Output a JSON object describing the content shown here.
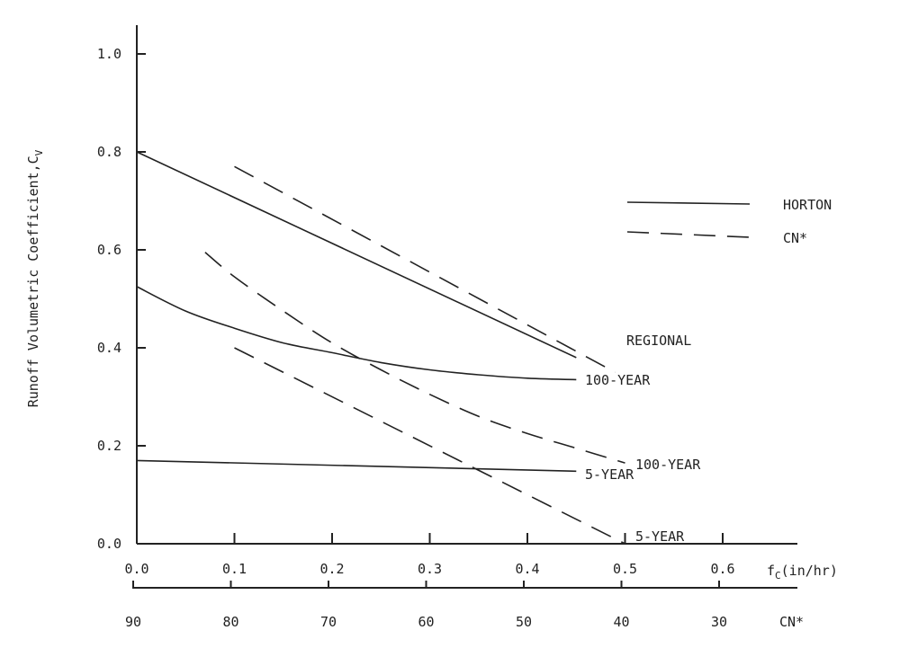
{
  "chart_data": {
    "type": "line",
    "ylabel": "Runoff Volumetric Coefficient,C",
    "ylabel_subscript": "V",
    "xlabel": "f",
    "xlabel_subscript": "C",
    "xlabel_unit": "(in/hr)",
    "x2label": "CN*",
    "xlim": [
      0.0,
      0.67
    ],
    "ylim": [
      0.0,
      1.05
    ],
    "x_ticks": [
      "0.0",
      "0.1",
      "0.2",
      "0.3",
      "0.4",
      "0.5",
      "0.6"
    ],
    "y_ticks": [
      "0.0",
      "0.2",
      "0.4",
      "0.6",
      "0.8",
      "1.0"
    ],
    "x2_ticks": [
      "90",
      "80",
      "70",
      "60",
      "50",
      "40",
      "30"
    ],
    "legend": [
      {
        "label": "HORTON",
        "style": "solid"
      },
      {
        "label": "CN*",
        "style": "dashed"
      }
    ],
    "annotations": {
      "regional": "REGIONAL",
      "horton_100": "100-YEAR",
      "horton_5": "5-YEAR",
      "cn_100": "100-YEAR",
      "cn_5": "5-YEAR"
    },
    "series": [
      {
        "style": "solid",
        "x": [
          0.0,
          0.45
        ],
        "y": [
          0.8,
          0.38
        ]
      },
      {
        "style": "dashed",
        "x": [
          0.1,
          0.49
        ],
        "y": [
          0.77,
          0.35
        ]
      },
      {
        "style": "solid",
        "x": [
          0.0,
          0.05,
          0.1,
          0.15,
          0.2,
          0.25,
          0.3,
          0.35,
          0.4,
          0.45
        ],
        "y": [
          0.525,
          0.475,
          0.44,
          0.41,
          0.39,
          0.37,
          0.355,
          0.345,
          0.338,
          0.335
        ]
      },
      {
        "style": "dashed",
        "x": [
          0.07,
          0.1,
          0.15,
          0.2,
          0.25,
          0.3,
          0.35,
          0.4,
          0.45,
          0.5
        ],
        "y": [
          0.595,
          0.545,
          0.475,
          0.41,
          0.355,
          0.305,
          0.26,
          0.225,
          0.195,
          0.165
        ]
      },
      {
        "style": "solid",
        "x": [
          0.0,
          0.45
        ],
        "y": [
          0.17,
          0.148
        ]
      },
      {
        "style": "dashed",
        "x": [
          0.1,
          0.5
        ],
        "y": [
          0.4,
          0.0
        ]
      }
    ]
  }
}
